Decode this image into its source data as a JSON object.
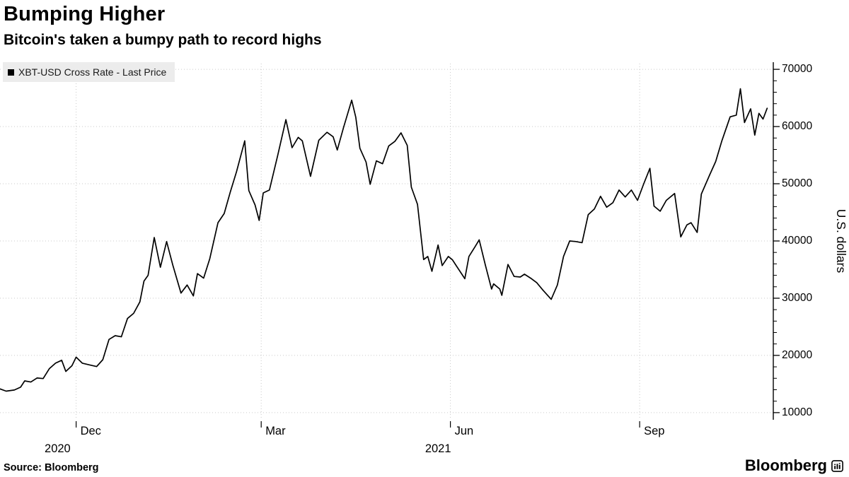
{
  "header": {
    "title": "Bumping Higher",
    "subtitle": "Bitcoin's taken a bumpy path to record highs"
  },
  "legend": {
    "label": "XBT-USD Cross Rate - Last Price",
    "marker_color": "#000000"
  },
  "footer": {
    "source": "Source: Bloomberg",
    "brand": "Bloomberg"
  },
  "colors": {
    "line": "#000000",
    "grid": "#c9c9c9",
    "axis": "#000000",
    "legend_bg": "#ececec"
  },
  "chart_data": {
    "type": "line",
    "title": "Bumping Higher",
    "subtitle": "Bitcoin's taken a bumpy path to record highs",
    "series_name": "XBT-USD Cross Rate - Last Price",
    "ylabel": "U.S. dollars",
    "ylim": [
      9000,
      71000
    ],
    "y_major_ticks": [
      10000,
      20000,
      30000,
      40000,
      50000,
      60000,
      70000
    ],
    "y_minor_step": 2000,
    "x_range": [
      "2020-10-25",
      "2021-11-05"
    ],
    "x_ticks": [
      {
        "label": "Dec",
        "date": "2020-12-01"
      },
      {
        "label": "Mar",
        "date": "2021-03-01"
      },
      {
        "label": "Jun",
        "date": "2021-06-01"
      },
      {
        "label": "Sep",
        "date": "2021-09-01"
      }
    ],
    "year_labels": [
      {
        "label": "2020",
        "date": "2020-11-22"
      },
      {
        "label": "2021",
        "date": "2021-05-26"
      }
    ],
    "grid": "dotted",
    "legend_position": "top-left",
    "line_color": "#000000",
    "points": [
      [
        "2020-10-25",
        14150
      ],
      [
        "2020-10-28",
        13750
      ],
      [
        "2020-11-01",
        13950
      ],
      [
        "2020-11-04",
        14450
      ],
      [
        "2020-11-06",
        15550
      ],
      [
        "2020-11-09",
        15350
      ],
      [
        "2020-11-12",
        16050
      ],
      [
        "2020-11-15",
        15950
      ],
      [
        "2020-11-18",
        17700
      ],
      [
        "2020-11-21",
        18650
      ],
      [
        "2020-11-24",
        19150
      ],
      [
        "2020-11-26",
        17200
      ],
      [
        "2020-11-29",
        18200
      ],
      [
        "2020-12-01",
        19700
      ],
      [
        "2020-12-04",
        18650
      ],
      [
        "2020-12-08",
        18300
      ],
      [
        "2020-12-11",
        18050
      ],
      [
        "2020-12-14",
        19250
      ],
      [
        "2020-12-17",
        22800
      ],
      [
        "2020-12-20",
        23450
      ],
      [
        "2020-12-23",
        23250
      ],
      [
        "2020-12-26",
        26450
      ],
      [
        "2020-12-29",
        27350
      ],
      [
        "2021-01-01",
        29350
      ],
      [
        "2021-01-03",
        33000
      ],
      [
        "2021-01-05",
        34000
      ],
      [
        "2021-01-08",
        40600
      ],
      [
        "2021-01-11",
        35400
      ],
      [
        "2021-01-14",
        39900
      ],
      [
        "2021-01-17",
        35800
      ],
      [
        "2021-01-21",
        30900
      ],
      [
        "2021-01-24",
        32300
      ],
      [
        "2021-01-27",
        30400
      ],
      [
        "2021-01-29",
        34300
      ],
      [
        "2021-02-01",
        33500
      ],
      [
        "2021-02-04",
        36900
      ],
      [
        "2021-02-08",
        43200
      ],
      [
        "2021-02-11",
        44800
      ],
      [
        "2021-02-14",
        48600
      ],
      [
        "2021-02-17",
        52100
      ],
      [
        "2021-02-21",
        57500
      ],
      [
        "2021-02-23",
        48800
      ],
      [
        "2021-02-26",
        46300
      ],
      [
        "2021-02-28",
        43600
      ],
      [
        "2021-03-02",
        48400
      ],
      [
        "2021-03-05",
        48900
      ],
      [
        "2021-03-09",
        54900
      ],
      [
        "2021-03-13",
        61200
      ],
      [
        "2021-03-16",
        56300
      ],
      [
        "2021-03-19",
        58100
      ],
      [
        "2021-03-21",
        57500
      ],
      [
        "2021-03-25",
        51300
      ],
      [
        "2021-03-29",
        57600
      ],
      [
        "2021-04-02",
        59000
      ],
      [
        "2021-04-05",
        58200
      ],
      [
        "2021-04-07",
        55900
      ],
      [
        "2021-04-10",
        59800
      ],
      [
        "2021-04-14",
        64600
      ],
      [
        "2021-04-16",
        61600
      ],
      [
        "2021-04-18",
        56200
      ],
      [
        "2021-04-21",
        53800
      ],
      [
        "2021-04-23",
        49900
      ],
      [
        "2021-04-26",
        54000
      ],
      [
        "2021-04-29",
        53500
      ],
      [
        "2021-05-02",
        56600
      ],
      [
        "2021-05-05",
        57400
      ],
      [
        "2021-05-08",
        58900
      ],
      [
        "2021-05-11",
        56700
      ],
      [
        "2021-05-13",
        49400
      ],
      [
        "2021-05-16",
        46400
      ],
      [
        "2021-05-19",
        36750
      ],
      [
        "2021-05-21",
        37300
      ],
      [
        "2021-05-23",
        34700
      ],
      [
        "2021-05-26",
        39300
      ],
      [
        "2021-05-28",
        35700
      ],
      [
        "2021-05-31",
        37300
      ],
      [
        "2021-06-02",
        36700
      ],
      [
        "2021-06-04",
        35600
      ],
      [
        "2021-06-08",
        33400
      ],
      [
        "2021-06-10",
        37300
      ],
      [
        "2021-06-13",
        39000
      ],
      [
        "2021-06-15",
        40200
      ],
      [
        "2021-06-18",
        35800
      ],
      [
        "2021-06-21",
        31600
      ],
      [
        "2021-06-22",
        32500
      ],
      [
        "2021-06-25",
        31600
      ],
      [
        "2021-06-26",
        30500
      ],
      [
        "2021-06-29",
        35900
      ],
      [
        "2021-07-02",
        33800
      ],
      [
        "2021-07-05",
        33700
      ],
      [
        "2021-07-07",
        34200
      ],
      [
        "2021-07-10",
        33500
      ],
      [
        "2021-07-13",
        32700
      ],
      [
        "2021-07-16",
        31400
      ],
      [
        "2021-07-20",
        29800
      ],
      [
        "2021-07-23",
        32300
      ],
      [
        "2021-07-26",
        37300
      ],
      [
        "2021-07-29",
        40000
      ],
      [
        "2021-08-01",
        39900
      ],
      [
        "2021-08-04",
        39700
      ],
      [
        "2021-08-07",
        44600
      ],
      [
        "2021-08-10",
        45600
      ],
      [
        "2021-08-13",
        47800
      ],
      [
        "2021-08-16",
        45900
      ],
      [
        "2021-08-19",
        46700
      ],
      [
        "2021-08-22",
        48900
      ],
      [
        "2021-08-25",
        47700
      ],
      [
        "2021-08-28",
        48900
      ],
      [
        "2021-08-31",
        47100
      ],
      [
        "2021-09-03",
        50000
      ],
      [
        "2021-09-06",
        52700
      ],
      [
        "2021-09-08",
        46100
      ],
      [
        "2021-09-11",
        45200
      ],
      [
        "2021-09-14",
        47100
      ],
      [
        "2021-09-18",
        48300
      ],
      [
        "2021-09-21",
        40700
      ],
      [
        "2021-09-24",
        42800
      ],
      [
        "2021-09-26",
        43200
      ],
      [
        "2021-09-29",
        41500
      ],
      [
        "2021-10-01",
        48200
      ],
      [
        "2021-10-05",
        51500
      ],
      [
        "2021-10-08",
        53900
      ],
      [
        "2021-10-11",
        57500
      ],
      [
        "2021-10-15",
        61700
      ],
      [
        "2021-10-18",
        62000
      ],
      [
        "2021-10-20",
        66600
      ],
      [
        "2021-10-22",
        60700
      ],
      [
        "2021-10-25",
        63100
      ],
      [
        "2021-10-27",
        58500
      ],
      [
        "2021-10-29",
        62300
      ],
      [
        "2021-10-31",
        61300
      ],
      [
        "2021-11-02",
        63200
      ]
    ]
  }
}
